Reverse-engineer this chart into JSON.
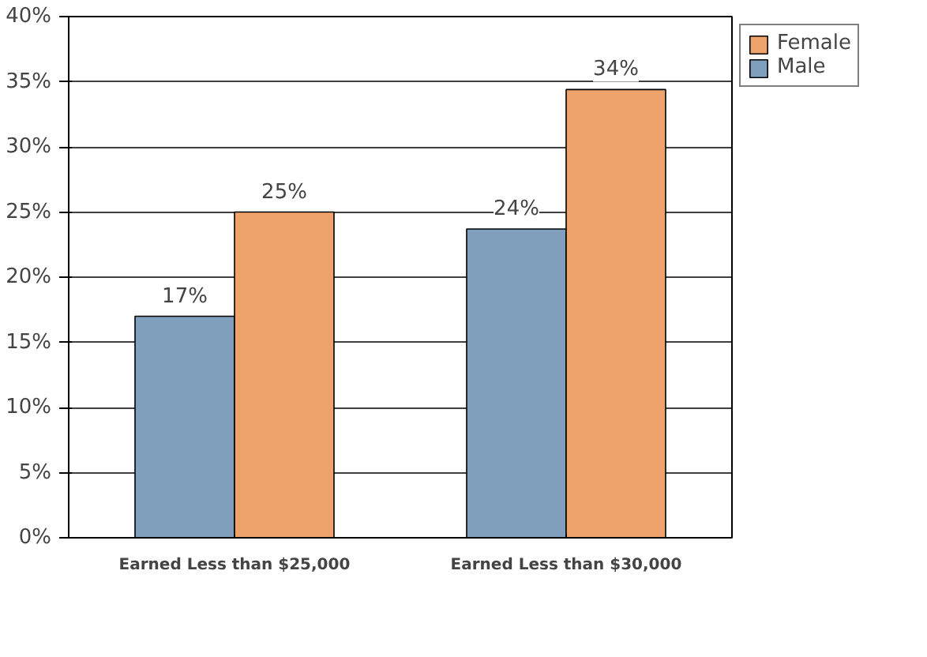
{
  "chart_data": {
    "type": "bar",
    "categories": [
      "Earned Less than $25,000",
      "Earned Less than $30,000"
    ],
    "series": [
      {
        "name": "Male",
        "color": "#7f9fbc",
        "values": [
          17,
          23.7
        ],
        "value_labels": [
          "17%",
          "24%"
        ]
      },
      {
        "name": "Female",
        "color": "#eda36b",
        "values": [
          25,
          34.4
        ],
        "value_labels": [
          "25%",
          "34%"
        ]
      }
    ],
    "ylim": [
      0,
      40
    ],
    "yticks": [
      {
        "value": 0,
        "label": "0%"
      },
      {
        "value": 5,
        "label": "5%"
      },
      {
        "value": 10,
        "label": "10%"
      },
      {
        "value": 15,
        "label": "15%"
      },
      {
        "value": 20,
        "label": "20%"
      },
      {
        "value": 25,
        "label": "25%"
      },
      {
        "value": 30,
        "label": "30%"
      },
      {
        "value": 35,
        "label": "35%"
      },
      {
        "value": 40,
        "label": "40%"
      }
    ],
    "grid": "y",
    "legend": "top right"
  }
}
